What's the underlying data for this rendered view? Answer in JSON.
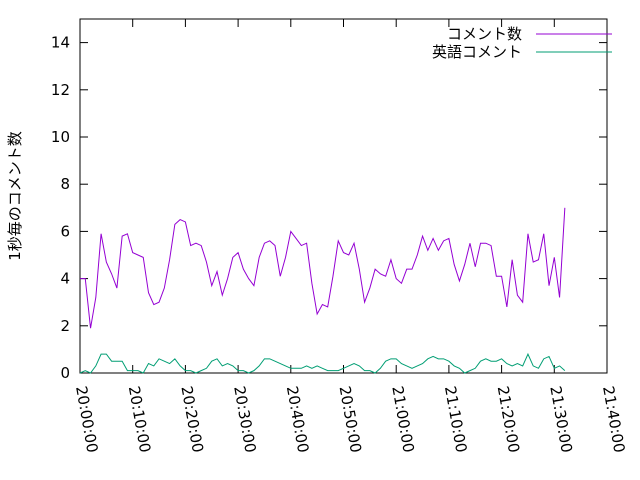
{
  "chart_data": {
    "type": "line",
    "ylabel": "1秒毎のコメント数",
    "x": [
      "20:00:00",
      "20:01:00",
      "20:02:00",
      "20:03:00",
      "20:04:00",
      "20:05:00",
      "20:06:00",
      "20:07:00",
      "20:08:00",
      "20:09:00",
      "20:10:00",
      "20:11:00",
      "20:12:00",
      "20:13:00",
      "20:14:00",
      "20:15:00",
      "20:16:00",
      "20:17:00",
      "20:18:00",
      "20:19:00",
      "20:20:00",
      "20:21:00",
      "20:22:00",
      "20:23:00",
      "20:24:00",
      "20:25:00",
      "20:26:00",
      "20:27:00",
      "20:28:00",
      "20:29:00",
      "20:30:00",
      "20:31:00",
      "20:32:00",
      "20:33:00",
      "20:34:00",
      "20:35:00",
      "20:36:00",
      "20:37:00",
      "20:38:00",
      "20:39:00",
      "20:40:00",
      "20:41:00",
      "20:42:00",
      "20:43:00",
      "20:44:00",
      "20:45:00",
      "20:46:00",
      "20:47:00",
      "20:48:00",
      "20:49:00",
      "20:50:00",
      "20:51:00",
      "20:52:00",
      "20:53:00",
      "20:54:00",
      "20:55:00",
      "20:56:00",
      "20:57:00",
      "20:58:00",
      "20:59:00",
      "21:00:00",
      "21:01:00",
      "21:02:00",
      "21:03:00",
      "21:04:00",
      "21:05:00",
      "21:06:00",
      "21:07:00",
      "21:08:00",
      "21:09:00",
      "21:10:00",
      "21:11:00",
      "21:12:00",
      "21:13:00",
      "21:14:00",
      "21:15:00",
      "21:16:00",
      "21:17:00",
      "21:18:00",
      "21:19:00",
      "21:20:00",
      "21:21:00",
      "21:22:00",
      "21:23:00",
      "21:24:00",
      "21:25:00",
      "21:26:00",
      "21:27:00",
      "21:28:00",
      "21:29:00",
      "21:30:00",
      "21:31:00",
      "21:32:00"
    ],
    "series": [
      {
        "name": "コメント数",
        "color": "#9400d3",
        "values": [
          4.0,
          4.0,
          1.9,
          3.2,
          5.9,
          4.7,
          4.2,
          3.6,
          5.8,
          5.9,
          5.1,
          5.0,
          4.9,
          3.4,
          2.9,
          3.0,
          3.6,
          4.8,
          6.3,
          6.5,
          6.4,
          5.4,
          5.5,
          5.4,
          4.7,
          3.7,
          4.3,
          3.3,
          4.0,
          4.9,
          5.1,
          4.4,
          4.0,
          3.7,
          4.9,
          5.5,
          5.6,
          5.4,
          4.1,
          4.9,
          6.0,
          5.7,
          5.4,
          5.5,
          3.8,
          2.5,
          2.9,
          2.8,
          4.1,
          5.6,
          5.1,
          5.0,
          5.5,
          4.4,
          3.0,
          3.6,
          4.4,
          4.2,
          4.1,
          4.8,
          4.0,
          3.8,
          4.4,
          4.4,
          5.0,
          5.8,
          5.2,
          5.7,
          5.2,
          5.6,
          5.7,
          4.6,
          3.9,
          4.6,
          5.5,
          4.5,
          5.5,
          5.5,
          5.4,
          4.1,
          4.1,
          2.8,
          4.8,
          3.3,
          3.0,
          5.9,
          4.7,
          4.8,
          5.9,
          3.7,
          4.9,
          3.2,
          7.0
        ]
      },
      {
        "name": "英語コメント",
        "color": "#009e73",
        "values": [
          0,
          0.1,
          0,
          0.3,
          0.8,
          0.8,
          0.5,
          0.5,
          0.5,
          0.1,
          0.1,
          0.1,
          0,
          0.4,
          0.3,
          0.6,
          0.5,
          0.4,
          0.6,
          0.3,
          0.1,
          0.1,
          0,
          0.1,
          0.2,
          0.5,
          0.6,
          0.3,
          0.4,
          0.3,
          0.1,
          0.1,
          0,
          0.1,
          0.3,
          0.6,
          0.6,
          0.5,
          0.4,
          0.3,
          0.2,
          0.2,
          0.2,
          0.3,
          0.2,
          0.3,
          0.2,
          0.1,
          0.1,
          0.1,
          0.2,
          0.3,
          0.4,
          0.3,
          0.1,
          0.1,
          0,
          0.2,
          0.5,
          0.6,
          0.6,
          0.4,
          0.3,
          0.2,
          0.3,
          0.4,
          0.6,
          0.7,
          0.6,
          0.6,
          0.5,
          0.3,
          0.2,
          0,
          0.1,
          0.2,
          0.5,
          0.6,
          0.5,
          0.5,
          0.6,
          0.4,
          0.3,
          0.4,
          0.3,
          0.8,
          0.3,
          0.2,
          0.6,
          0.7,
          0.2,
          0.3,
          0.1
        ]
      }
    ],
    "xlim": [
      "20:00:00",
      "21:40:00"
    ],
    "xticks": [
      "20:00:00",
      "20:10:00",
      "20:20:00",
      "20:30:00",
      "20:40:00",
      "20:50:00",
      "21:00:00",
      "21:10:00",
      "21:20:00",
      "21:30:00",
      "21:40:00"
    ],
    "ylim": [
      0,
      15
    ],
    "yticks": [
      0,
      2,
      4,
      6,
      8,
      10,
      12,
      14
    ],
    "legend": "top-right"
  }
}
